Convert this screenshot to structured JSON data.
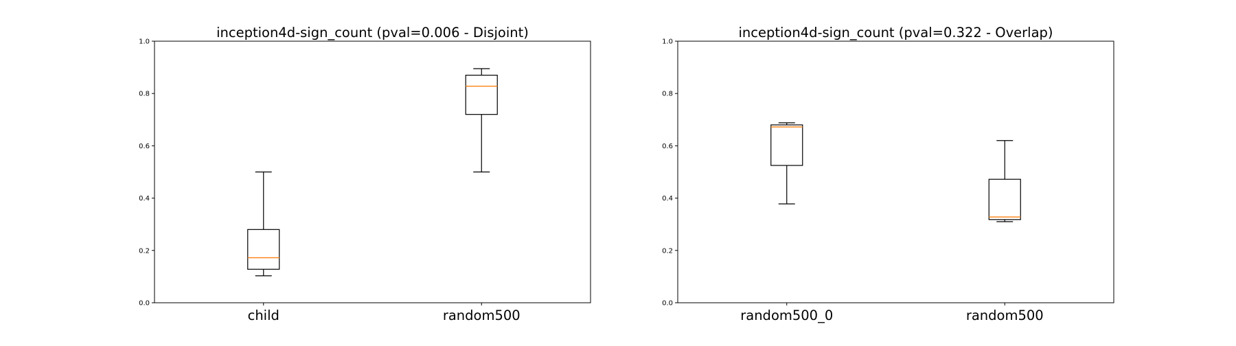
{
  "chart_data": [
    {
      "type": "box",
      "title": "inception4d-sign_count (pval=0.006 - Disjoint)",
      "xlabel": "",
      "ylabel": "",
      "ylim": [
        0,
        1
      ],
      "yticks": [
        "0.0",
        "0.2",
        "0.4",
        "0.6",
        "0.8",
        "1.0"
      ],
      "grid": false,
      "categories": [
        "child",
        "random500"
      ],
      "boxes": [
        {
          "category": "child",
          "whisker_low": 0.103,
          "q1": 0.128,
          "median": 0.172,
          "q3": 0.28,
          "whisker_high": 0.5
        },
        {
          "category": "random500",
          "whisker_low": 0.5,
          "q1": 0.72,
          "median": 0.828,
          "q3": 0.87,
          "whisker_high": 0.895
        }
      ]
    },
    {
      "type": "box",
      "title": "inception4d-sign_count (pval=0.322 - Overlap)",
      "xlabel": "",
      "ylabel": "",
      "ylim": [
        0,
        1
      ],
      "yticks": [
        "0.0",
        "0.2",
        "0.4",
        "0.6",
        "0.8",
        "1.0"
      ],
      "grid": false,
      "categories": [
        "random500_0",
        "random500"
      ],
      "boxes": [
        {
          "category": "random500_0",
          "whisker_low": 0.378,
          "q1": 0.525,
          "median": 0.672,
          "q3": 0.68,
          "whisker_high": 0.688
        },
        {
          "category": "random500",
          "whisker_low": 0.31,
          "q1": 0.318,
          "median": 0.328,
          "q3": 0.472,
          "whisker_high": 0.62
        }
      ]
    }
  ],
  "colors": {
    "box": "#000000",
    "median": "#ff7f0e",
    "axes": "#000000",
    "background": "#ffffff"
  }
}
